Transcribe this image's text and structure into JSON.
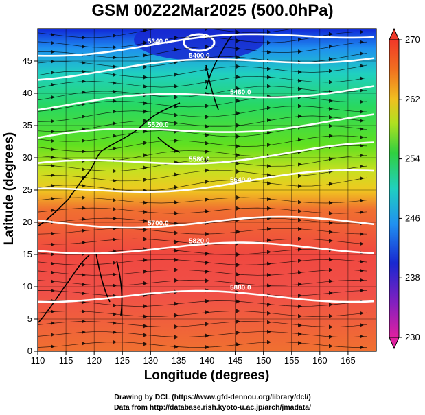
{
  "title": "GSM 00Z22Mar2025 (500.0hPa)",
  "credits": {
    "line1": "Drawing by DCL (https://www.gfd-dennou.org/library/dcl/)",
    "line2": "Data from http://database.rish.kyoto-u.ac.jp/arch/jmadata/"
  },
  "axes": {
    "xlabel": "Longitude (degrees)",
    "ylabel": "Latitude  (degrees)",
    "x_ticks": [
      110,
      115,
      120,
      125,
      130,
      135,
      140,
      145,
      150,
      155,
      160,
      165
    ],
    "y_ticks": [
      0,
      5,
      10,
      15,
      20,
      25,
      30,
      35,
      40,
      45
    ],
    "xlim": [
      110,
      170
    ],
    "ylim": [
      0,
      50
    ]
  },
  "colorbar": {
    "ticks": [
      "230",
      "238",
      "246",
      "254",
      "262",
      "270"
    ],
    "range": [
      230,
      270
    ],
    "colors": [
      "#e0209a",
      "#7020c8",
      "#2030d0",
      "#2090f0",
      "#20d0c0",
      "#30d040",
      "#a0e020",
      "#f0d020",
      "#f08020",
      "#f04020"
    ]
  },
  "contours": [
    {
      "label": "5340.0",
      "lat": 47.5
    },
    {
      "label": "5400.0",
      "lat": 44.0
    },
    {
      "label": "5460.0",
      "lat": 39.0
    },
    {
      "label": "5520.0",
      "lat": 34.0
    },
    {
      "label": "5580.0",
      "lat": 29.5
    },
    {
      "label": "5640.0",
      "lat": 25.5
    },
    {
      "label": "5700.0",
      "lat": 20.0
    },
    {
      "label": "5820.0",
      "lat": 16.0
    },
    {
      "label": "5880.0",
      "lat": 8.5
    }
  ],
  "contour_labels": [
    "5340.0",
    "5400.0",
    "5460.0",
    "5520.0",
    "5580.0",
    "5640.0",
    "5700.0",
    "5820.0",
    "5880.0"
  ]
}
